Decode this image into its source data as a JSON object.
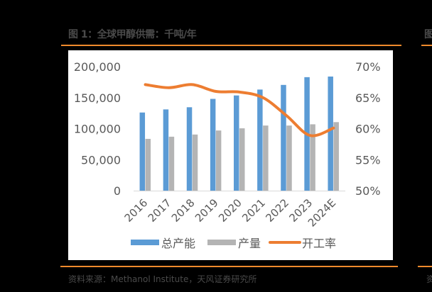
{
  "figure": {
    "title": "图 1：全球甲醇供需：千吨/年",
    "source": "资料来源：Methanol Institute，天风证券研究所",
    "right_title_fragment": "图",
    "right_source_fragment": "资",
    "accent_color": "#f08a2c"
  },
  "chart_data": {
    "type": "bar",
    "title": "全球甲醇供需：千吨/年",
    "categories": [
      "2016",
      "2017",
      "2018",
      "2019",
      "2020",
      "2021",
      "2022",
      "2023",
      "2024E"
    ],
    "series": [
      {
        "name": "总产能",
        "type": "bar",
        "axis": "left",
        "color": "#5b9bd5",
        "values": [
          126000,
          131000,
          134500,
          148000,
          153500,
          163000,
          170500,
          183000,
          184000
        ]
      },
      {
        "name": "产量",
        "type": "bar",
        "axis": "left",
        "color": "#b4b4b4",
        "values": [
          83500,
          87000,
          90500,
          97000,
          100500,
          105000,
          105000,
          107000,
          110500
        ]
      },
      {
        "name": "开工率",
        "type": "line",
        "axis": "right",
        "color": "#ed7d31",
        "values": [
          67.1,
          66.6,
          67.1,
          66.0,
          65.9,
          65.0,
          62.1,
          58.9,
          60.1
        ]
      }
    ],
    "left_axis": {
      "ylim": [
        0,
        200000
      ],
      "ticks": [
        "0",
        "50,000",
        "100,000",
        "150,000",
        "200,000"
      ]
    },
    "right_axis": {
      "ylim": [
        50,
        70
      ],
      "ticks": [
        "50%",
        "55%",
        "60%",
        "65%",
        "70%"
      ]
    },
    "xlabel": "",
    "ylabel": "",
    "grid": false,
    "legend_position": "bottom",
    "legend": [
      "总产能",
      "产量",
      "开工率"
    ]
  }
}
